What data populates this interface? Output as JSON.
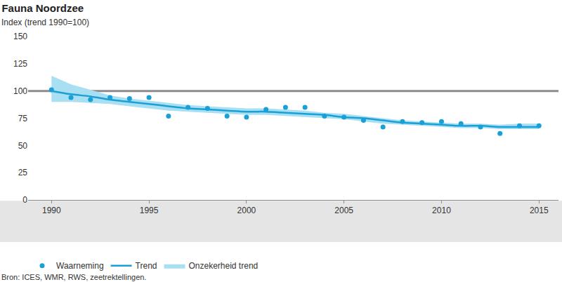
{
  "chart_data": {
    "type": "line",
    "title": "Fauna Noordzee",
    "subtitle": "Index (trend 1990=100)",
    "source": "Bron: ICES, WMR, RWS, zeetrektellingen.",
    "x": [
      1990,
      1991,
      1992,
      1993,
      1994,
      1995,
      1996,
      1997,
      1998,
      1999,
      2000,
      2001,
      2002,
      2003,
      2004,
      2005,
      2006,
      2007,
      2008,
      2009,
      2010,
      2011,
      2012,
      2013,
      2014,
      2015
    ],
    "xlim": [
      1988.8,
      2016
    ],
    "xticks": [
      1990,
      1995,
      2000,
      2005,
      2010,
      2015
    ],
    "ylim": [
      0,
      150
    ],
    "yticks": [
      0,
      25,
      50,
      75,
      100,
      125,
      150
    ],
    "grid": false,
    "legend": "bottom left",
    "reference_line": 100,
    "series": [
      {
        "name": "Waarneming",
        "type": "scatter",
        "marker": "circle",
        "color": "#1aa0d6",
        "values": [
          101,
          94,
          92,
          94,
          93,
          94,
          77,
          85,
          84,
          77,
          76,
          83,
          85,
          85,
          77,
          76,
          73,
          67,
          72,
          71,
          72,
          70,
          67,
          61,
          68,
          68
        ]
      },
      {
        "name": "Trend",
        "type": "line",
        "line_style": "solid",
        "color": "#1aa0d6",
        "values": [
          100,
          97,
          95,
          92,
          90,
          88,
          86,
          84,
          83,
          82,
          81,
          81,
          80,
          79,
          78,
          76,
          75,
          73,
          71,
          70,
          69,
          68,
          68,
          67,
          67,
          67
        ]
      },
      {
        "name": "Onzekerheid trend",
        "type": "band",
        "color": "#a8dff2",
        "lower": [
          90,
          90,
          89,
          88,
          86,
          84,
          82,
          81,
          80,
          79,
          78,
          78,
          77,
          76,
          75,
          74,
          72,
          70,
          69,
          68,
          67,
          66,
          66,
          65,
          65,
          65
        ],
        "upper": [
          114,
          106,
          101,
          96,
          93,
          91,
          89,
          87,
          86,
          85,
          84,
          84,
          83,
          82,
          80,
          79,
          77,
          75,
          73,
          72,
          71,
          70,
          70,
          69,
          70,
          70
        ]
      }
    ]
  }
}
